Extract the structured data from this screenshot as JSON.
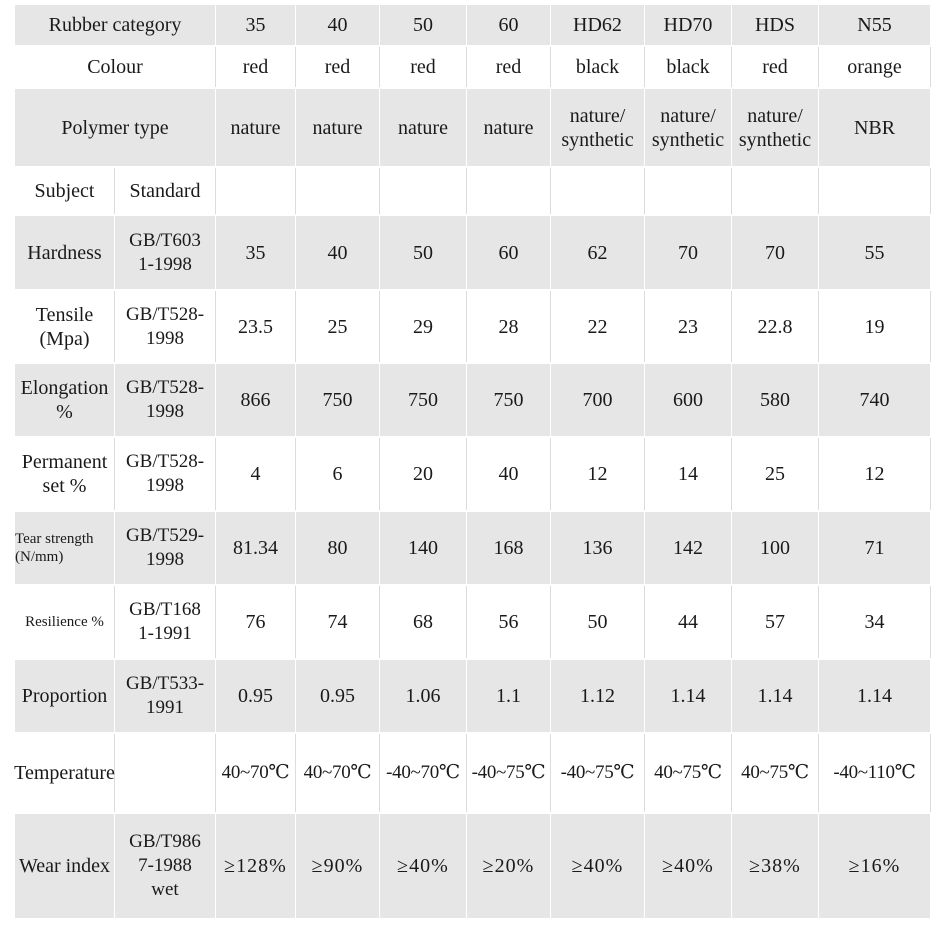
{
  "header": {
    "category_label": "Rubber category",
    "categories": [
      "35",
      "40",
      "50",
      "60",
      "HD62",
      "HD70",
      "HDS",
      "N55"
    ]
  },
  "colour": {
    "label": "Colour",
    "values": [
      "red",
      "red",
      "red",
      "red",
      "black",
      "black",
      "red",
      "orange"
    ]
  },
  "polymer": {
    "label": "Polymer type",
    "values": [
      "nature",
      "nature",
      "nature",
      "nature",
      "nature/\nsynthetic",
      "nature/\nsynthetic",
      "nature/\nsynthetic",
      "NBR"
    ]
  },
  "subject_row": {
    "subject_label": "Subject",
    "standard_label": "Standard"
  },
  "properties": [
    {
      "name": "Hardness",
      "standard": "GB/T603\n1-1998",
      "values": [
        "35",
        "40",
        "50",
        "60",
        "62",
        "70",
        "70",
        "55"
      ]
    },
    {
      "name": "Tensile\n(Mpa)",
      "standard": "GB/T528-\n1998",
      "values": [
        "23.5",
        "25",
        "29",
        "28",
        "22",
        "23",
        "22.8",
        "19"
      ]
    },
    {
      "name": "Elongation\n%",
      "standard": "GB/T528-\n1998",
      "values": [
        "866",
        "750",
        "750",
        "750",
        "700",
        "600",
        "580",
        "740"
      ]
    },
    {
      "name": "Permanent\nset %",
      "standard": "GB/T528-\n1998",
      "values": [
        "4",
        "6",
        "20",
        "40",
        "12",
        "14",
        "25",
        "12"
      ]
    },
    {
      "name": "Tear strength\n(N/mm)",
      "standard": "GB/T529-\n1998",
      "values": [
        "81.34",
        "80",
        "140",
        "168",
        "136",
        "142",
        "100",
        "71"
      ]
    },
    {
      "name": "Resilience %",
      "standard": "GB/T168\n1-1991",
      "values": [
        "76",
        "74",
        "68",
        "56",
        "50",
        "44",
        "57",
        "34"
      ]
    },
    {
      "name": "Proportion",
      "standard": "GB/T533-\n1991",
      "values": [
        "0.95",
        "0.95",
        "1.06",
        "1.1",
        "1.12",
        "1.14",
        "1.14",
        "1.14"
      ]
    },
    {
      "name": "Temperature",
      "standard": "",
      "values": [
        "40~70℃",
        "40~70℃",
        "-40~70℃",
        "-40~75℃",
        "-40~75℃",
        "40~75℃",
        "40~75℃",
        "-40~110℃"
      ]
    },
    {
      "name": "Wear index",
      "standard": "GB/T986\n7-1988\nwet",
      "values": [
        "≥128%",
        "≥90%",
        "≥40%",
        "≥20%",
        "≥40%",
        "≥40%",
        "≥38%",
        "≥16%"
      ]
    }
  ]
}
